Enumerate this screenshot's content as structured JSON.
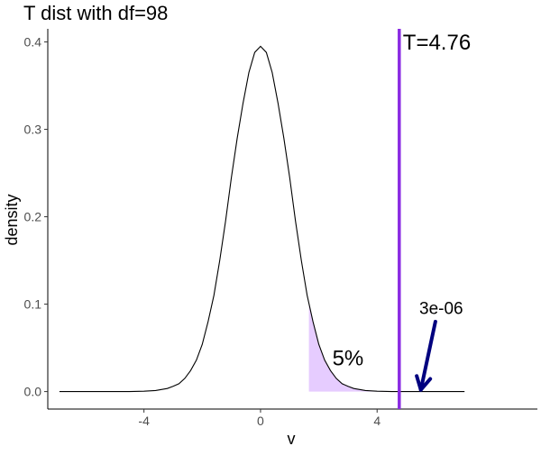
{
  "chart_data": {
    "type": "area",
    "title": "T dist with df=98",
    "xlabel": "v",
    "ylabel": "density",
    "xlim": [
      -7.3,
      9.5
    ],
    "ylim": [
      -0.02,
      0.415
    ],
    "x_ticks": [
      -4,
      0,
      4
    ],
    "x_tick_labels": [
      "-4",
      "0",
      "4"
    ],
    "y_ticks": [
      0.0,
      0.1,
      0.2,
      0.3,
      0.4
    ],
    "y_tick_labels": [
      "0.0",
      "0.1",
      "0.2",
      "0.3",
      "0.4"
    ],
    "grid": false,
    "series": [
      {
        "x": [
          -6.9,
          -6.0,
          -5.5,
          -5.0,
          -4.5,
          -4.0,
          -3.6,
          -3.2,
          -3.0,
          -2.8,
          -2.6,
          -2.4,
          -2.2,
          -2.0,
          -1.8,
          -1.6,
          -1.4,
          -1.2,
          -1.0,
          -0.8,
          -0.6,
          -0.4,
          -0.2,
          0.0,
          0.2,
          0.4,
          0.6,
          0.8,
          1.0,
          1.2,
          1.4,
          1.6,
          1.8,
          2.0,
          2.2,
          2.4,
          2.6,
          2.8,
          3.0,
          3.2,
          3.6,
          4.0,
          4.5,
          5.0,
          6.0,
          7.0
        ],
        "y": [
          0.0,
          0.0,
          0.0,
          0.0,
          0.0,
          0.0004,
          0.0012,
          0.0035,
          0.006,
          0.009,
          0.015,
          0.024,
          0.036,
          0.054,
          0.08,
          0.11,
          0.15,
          0.195,
          0.245,
          0.29,
          0.33,
          0.365,
          0.388,
          0.395,
          0.388,
          0.365,
          0.33,
          0.29,
          0.245,
          0.195,
          0.15,
          0.11,
          0.08,
          0.054,
          0.036,
          0.024,
          0.015,
          0.009,
          0.006,
          0.0035,
          0.0012,
          0.0004,
          0.0,
          0.0,
          0.0,
          0.0
        ],
        "color": "#000000"
      }
    ],
    "shaded_region": {
      "x_from": 1.66,
      "x_to": 4.5,
      "color": "#e6ccff"
    },
    "vline": {
      "x": 4.76,
      "color": "#8a2be2",
      "label": "T=4.76"
    },
    "annotations": [
      {
        "text": "5%",
        "x": 3.0,
        "y": 0.038
      },
      {
        "text": "3e-06",
        "x": 6.2,
        "y": 0.097
      }
    ],
    "arrow": {
      "x_start": 6.0,
      "y_start": 0.08,
      "x_end": 5.5,
      "y_end": 0.002,
      "color": "#00007f"
    }
  }
}
